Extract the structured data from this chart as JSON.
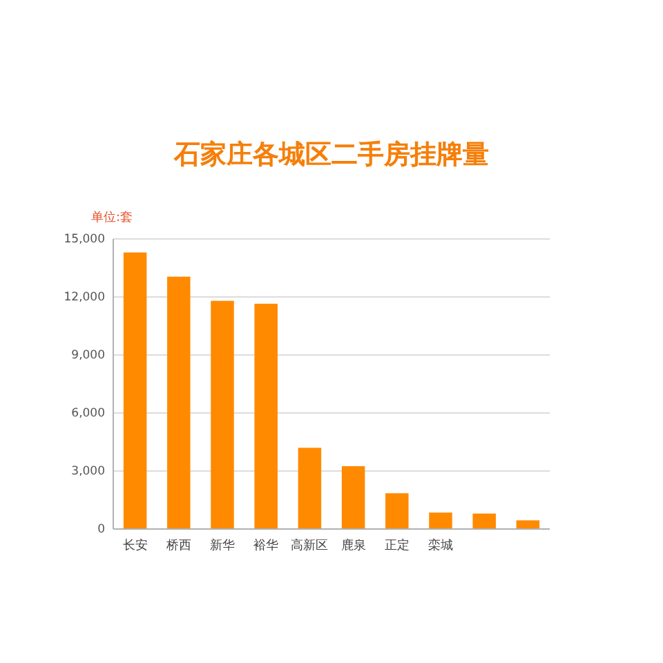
{
  "chart_data": {
    "type": "bar",
    "title": "石家庄各城区二手房挂牌量",
    "ylabel": "单位:套",
    "categories": [
      "长安",
      "桥西",
      "新华",
      "裕华",
      "高新区",
      "鹿泉",
      "正定",
      "栾城",
      null,
      null
    ],
    "values": [
      14300,
      13050,
      11800,
      11650,
      4200,
      3250,
      1850,
      850,
      800,
      450
    ],
    "color": "#ff8a00",
    "ylim": [
      0,
      15000
    ],
    "yticks": [
      {
        "value": 0,
        "label": "0"
      },
      {
        "value": 3000,
        "label": "3,000"
      },
      {
        "value": 6000,
        "label": "6,000"
      },
      {
        "value": 9000,
        "label": "9,000"
      },
      {
        "value": 12000,
        "label": "12,000"
      },
      {
        "value": 15000,
        "label": "15,000"
      }
    ],
    "grid": "y"
  }
}
